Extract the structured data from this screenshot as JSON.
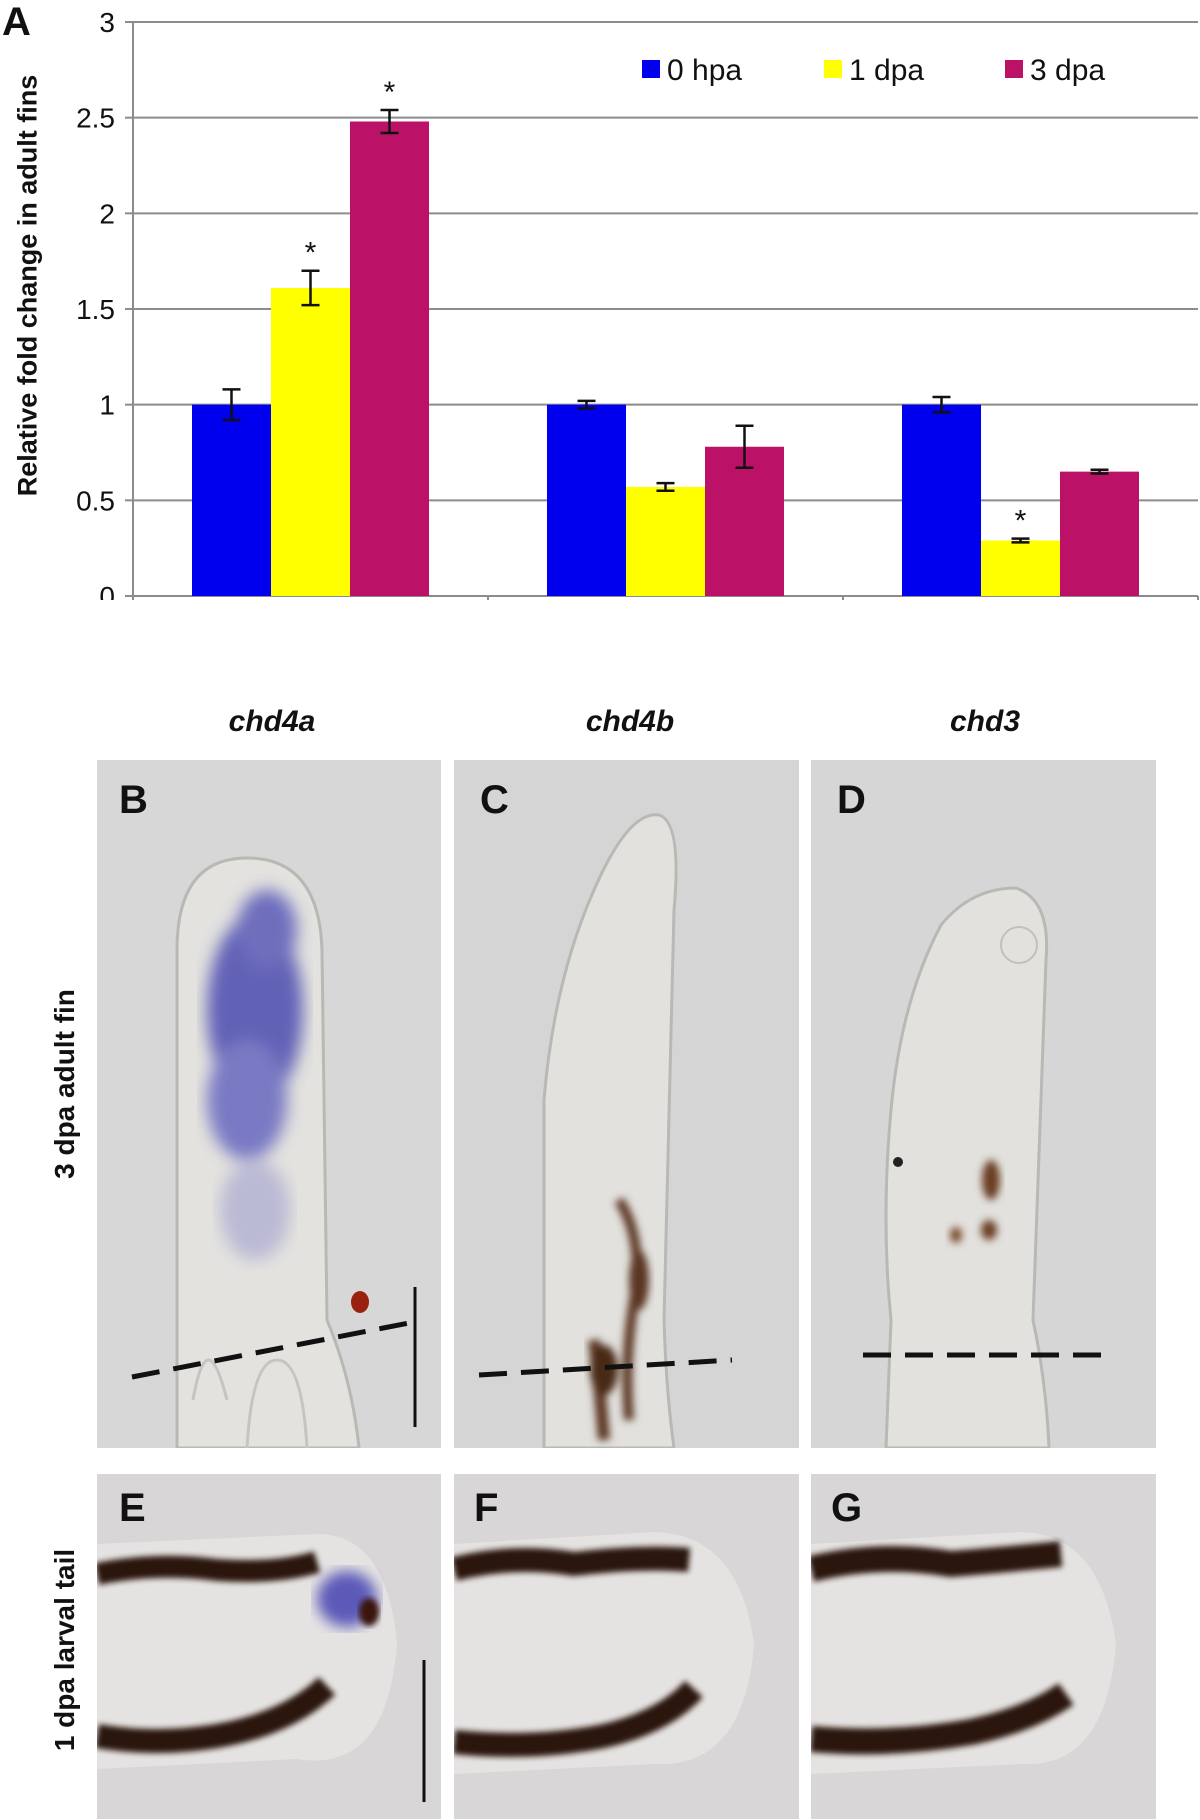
{
  "panels": {
    "a": "A",
    "b": "B",
    "c": "C",
    "d": "D",
    "e": "E",
    "f": "F",
    "g": "G"
  },
  "column_titles": [
    "chd4a",
    "chd4b",
    "chd3"
  ],
  "row_labels": {
    "adult": "3 dpa adult fin",
    "larval": "1 dpa larval tail"
  },
  "chart_data": {
    "type": "bar",
    "categories": [
      "chd4a",
      "chd4b",
      "chd3"
    ],
    "series": [
      {
        "name": "0 hpa",
        "color": "#0000ee",
        "values": [
          1.0,
          1.0,
          1.0
        ],
        "errors": [
          0.08,
          0.02,
          0.04
        ],
        "significant": [
          false,
          false,
          false
        ]
      },
      {
        "name": "1 dpa",
        "color": "#ffff00",
        "values": [
          1.61,
          0.57,
          0.29
        ],
        "errors": [
          0.09,
          0.02,
          0.01
        ],
        "significant": [
          true,
          false,
          true
        ]
      },
      {
        "name": "3 dpa",
        "color": "#bb1166",
        "values": [
          2.48,
          0.78,
          0.65
        ],
        "errors": [
          0.06,
          0.11,
          0.01
        ],
        "significant": [
          true,
          false,
          false
        ]
      }
    ],
    "ylabel": "Relative fold change in adult fins",
    "ylim": [
      0,
      3
    ],
    "yticks": [
      "0",
      "0.5",
      "1",
      "1.5",
      "2",
      "2.5",
      "3"
    ],
    "significance_mark": "*",
    "grid": true,
    "legend_position": "top-right"
  }
}
